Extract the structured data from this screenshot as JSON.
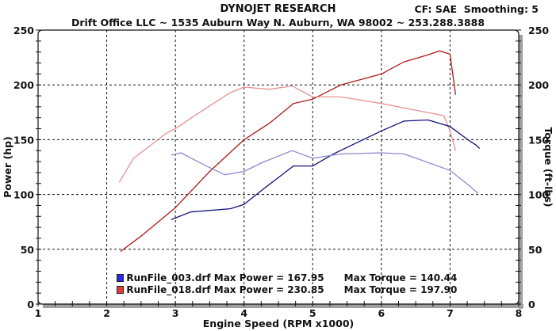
{
  "header": {
    "title": "DYNOJET RESEARCH",
    "subtitle": "Drift Office LLC ~ 1535 Auburn Way N. Auburn, WA 98002 ~ 253.288.3888",
    "cf_label": "CF: SAE  Smoothing: 5"
  },
  "legend": [
    {
      "file": "RunFile_003.drf",
      "text": "RunFile_003.drf Max Power = 167.95      Max Torque = 140.44",
      "color": "#1a1aa0"
    },
    {
      "file": "RunFile_018.drf",
      "text": "RunFile_018.drf Max Power = 230.85      Max Torque = 197.90",
      "color": "#b01818"
    }
  ],
  "chart_data": {
    "type": "line",
    "title": "DYNOJET RESEARCH",
    "subtitle": "Drift Office LLC ~ 1535 Auburn Way N. Auburn, WA 98002 ~ 253.288.3888",
    "xlabel": "Engine Speed (RPM x1000)",
    "ylabel": "Power (hp)",
    "y2label": "Torque (ft-lbs)",
    "xlim": [
      1,
      8
    ],
    "ylim": [
      0,
      250
    ],
    "y2lim": [
      0,
      250
    ],
    "xticks": [
      1,
      2,
      3,
      4,
      5,
      6,
      7,
      8
    ],
    "yticks": [
      0,
      50,
      100,
      150,
      200,
      250
    ],
    "y2ticks": [
      0,
      50,
      100,
      150,
      200,
      250
    ],
    "grid": true,
    "legend_position": "bottom-left inside",
    "annotations": [
      "CF: SAE  Smoothing: 5"
    ],
    "series": [
      {
        "name": "RunFile_018.drf Power",
        "axis": "left",
        "color": "#b01818",
        "x": [
          2.2,
          2.52,
          3.0,
          3.5,
          4.0,
          4.37,
          4.72,
          5.0,
          5.41,
          6.0,
          6.33,
          6.66,
          6.85,
          7.0,
          7.08
        ],
        "y": [
          48,
          63,
          88,
          121,
          150,
          165,
          183,
          187,
          200,
          210,
          221,
          227,
          231,
          228,
          191
        ]
      },
      {
        "name": "RunFile_018.drf Torque",
        "axis": "right",
        "color": "#e89090",
        "x": [
          2.18,
          2.39,
          2.58,
          2.87,
          3.0,
          3.33,
          3.8,
          4.0,
          4.37,
          4.7,
          5.0,
          5.41,
          6.0,
          6.57,
          6.91,
          7.0,
          7.08
        ],
        "y": [
          111,
          133,
          142,
          156,
          160,
          174,
          193,
          198,
          196,
          199,
          189,
          189,
          183,
          176,
          172,
          158,
          140
        ]
      },
      {
        "name": "RunFile_003.drf Power",
        "axis": "left",
        "color": "#10107a",
        "x": [
          2.94,
          3.22,
          3.8,
          4.0,
          4.26,
          4.72,
          5.0,
          5.3,
          6.0,
          6.33,
          6.68,
          7.0,
          7.26,
          7.38,
          7.43
        ],
        "y": [
          77,
          84,
          87,
          91,
          104,
          126,
          126,
          137,
          158,
          167,
          168,
          162,
          150,
          145,
          142
        ]
      },
      {
        "name": "RunFile_003.drf Torque",
        "axis": "right",
        "color": "#8a8ad0",
        "x": [
          2.94,
          3.08,
          3.45,
          3.72,
          4.0,
          4.26,
          4.7,
          5.0,
          5.41,
          6.0,
          6.33,
          7.0,
          7.26,
          7.41
        ],
        "y": [
          136,
          138,
          126,
          118,
          121,
          129,
          140,
          133,
          137,
          138,
          137,
          122,
          109,
          101
        ]
      }
    ],
    "max_values": [
      {
        "run": "RunFile_003.drf",
        "max_power": 167.95,
        "max_torque": 140.44
      },
      {
        "run": "RunFile_018.drf",
        "max_power": 230.85,
        "max_torque": 197.9
      }
    ]
  }
}
